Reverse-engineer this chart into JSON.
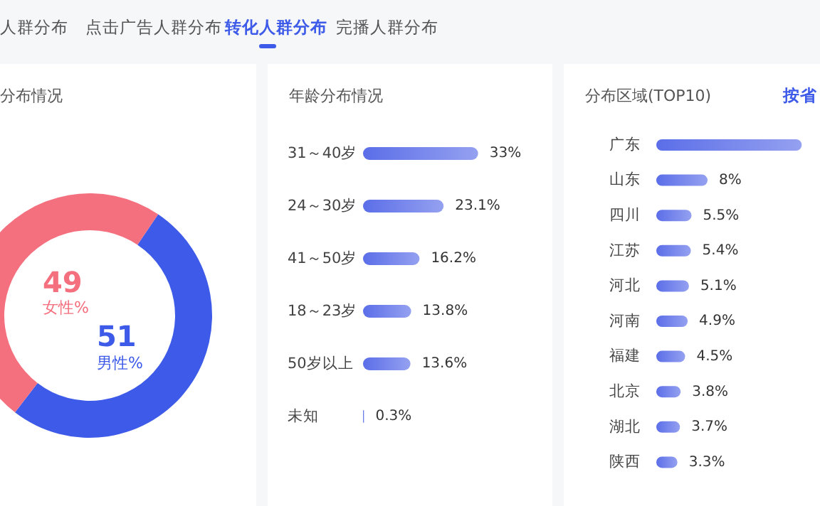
{
  "chart_data": [
    {
      "type": "donut",
      "title": "分布情况",
      "categories": [
        "女性%",
        "男性%"
      ],
      "values": [
        49,
        51
      ],
      "colors": [
        "#f4707f",
        "#3d5be8"
      ],
      "data_labels": true,
      "annotations": [
        "人群分布",
        "点击广告人群分布",
        "转化人群分布",
        "完播人群分布"
      ]
    },
    {
      "type": "bar",
      "orientation": "horizontal",
      "title": "年龄分布情况",
      "categories": [
        "31～40岁",
        "24～30岁",
        "41～50岁",
        "18～23岁",
        "50岁以上",
        "未知"
      ],
      "values": [
        33,
        23.1,
        16.2,
        13.8,
        13.6,
        0.3
      ],
      "color": "#5b6ee8",
      "value_labels": [
        "33%",
        "23.1%",
        "16.2%",
        "13.8%",
        "13.6%",
        "0.3%"
      ]
    },
    {
      "type": "bar",
      "orientation": "horizontal",
      "title": "分布区域(TOP10)",
      "categories": [
        "广东",
        "山东",
        "四川",
        "江苏",
        "河北",
        "河南",
        "福建",
        "北京",
        "湖北",
        "陕西"
      ],
      "values": [
        22.7,
        8,
        5.5,
        5.4,
        5.1,
        4.9,
        4.5,
        3.8,
        3.7,
        3.3
      ],
      "color": "#5b6ee8",
      "value_labels": [
        null,
        "8%",
        "5.5%",
        "5.4%",
        "5.1%",
        "4.9%",
        "4.5%",
        "3.8%",
        "3.7%",
        "3.3%"
      ],
      "annotations": [
        "按省"
      ]
    }
  ]
}
